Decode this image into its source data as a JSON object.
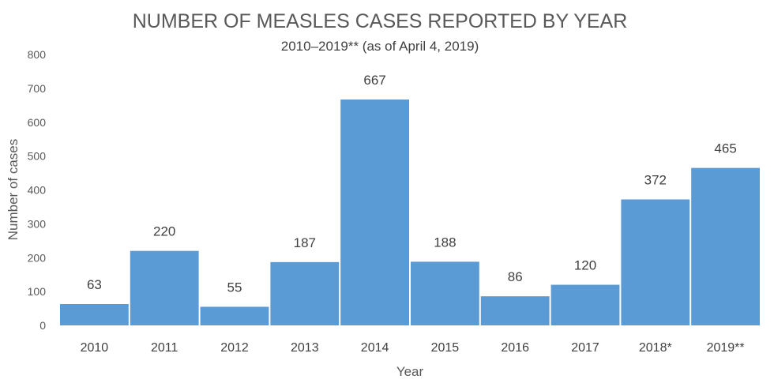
{
  "chart_data": {
    "type": "bar",
    "title": "NUMBER OF MEASLES CASES REPORTED BY YEAR",
    "subtitle": "2010–2019** (as of April 4, 2019)",
    "xlabel": "Year",
    "ylabel": "Number of cases",
    "categories": [
      "2010",
      "2011",
      "2012",
      "2013",
      "2014",
      "2015",
      "2016",
      "2017",
      "2018*",
      "2019**"
    ],
    "values": [
      63,
      220,
      55,
      187,
      667,
      188,
      86,
      120,
      372,
      465
    ],
    "ylim": [
      0,
      800
    ],
    "yticks": [
      0,
      100,
      200,
      300,
      400,
      500,
      600,
      700,
      800
    ],
    "grid": false,
    "data_labels": true,
    "colors": {
      "bar": "#5b9bd5"
    }
  }
}
